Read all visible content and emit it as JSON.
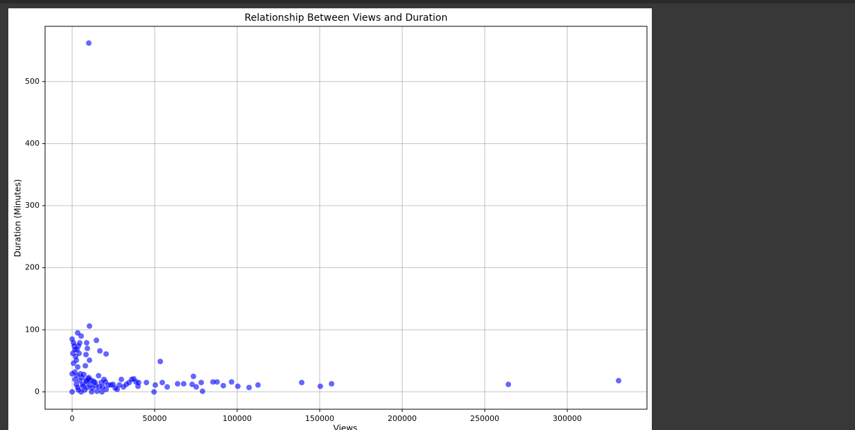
{
  "chart_data": {
    "type": "scatter",
    "title": "Relationship Between Views and Duration",
    "xlabel": "Views",
    "ylabel": "Duration (Minutes)",
    "x": [
      10085,
      10500,
      3360,
      5460,
      14700,
      8800,
      9200,
      16800,
      20600,
      8400,
      10500,
      8000,
      53400,
      0,
      840,
      1260,
      1680,
      420,
      2100,
      2520,
      840,
      3360,
      0,
      1680,
      3780,
      4200,
      2940,
      4620,
      0,
      29800,
      36100,
      38700,
      39900,
      45000,
      49600,
      50400,
      54600,
      57600,
      63900,
      67600,
      72700,
      73500,
      75200,
      78200,
      79000,
      85300,
      87800,
      91600,
      96600,
      100400,
      107200,
      112600,
      139100,
      150400,
      157200,
      264300,
      331100,
      2500,
      3400,
      4600,
      5900,
      6700,
      7600,
      8800,
      9700,
      10900,
      12200,
      13000,
      14300,
      16000,
      17600,
      18500,
      19300,
      20600,
      21900,
      23500,
      24800,
      26100,
      27300,
      28600,
      31100,
      32800,
      34500,
      37400,
      40300,
      3800,
      5500,
      7100,
      10100,
      11800,
      15100,
      18100,
      1700,
      2900,
      5000,
      6300,
      8400,
      9200,
      11300,
      13900,
      16400,
      20200
    ],
    "values": [
      562,
      106,
      95,
      90,
      83,
      79,
      70,
      66,
      61,
      60,
      51,
      42,
      49,
      85,
      79,
      74,
      68,
      62,
      57,
      51,
      46,
      40,
      29,
      32,
      74,
      62,
      68,
      79,
      0,
      20,
      20,
      16,
      9,
      15,
      0,
      11,
      15,
      8,
      13,
      13,
      12,
      25,
      8,
      15,
      1,
      16,
      16,
      10,
      16,
      9,
      7,
      11,
      15,
      9,
      13,
      12,
      18,
      12,
      7,
      18,
      23,
      9,
      3,
      16,
      21,
      11,
      6,
      17,
      10,
      26,
      15,
      8,
      20,
      4,
      11,
      11,
      12,
      6,
      4,
      11,
      8,
      12,
      15,
      21,
      15,
      3,
      0,
      28,
      23,
      0,
      1,
      0,
      20,
      26,
      29,
      12,
      18,
      7,
      19,
      15,
      8,
      16
    ],
    "color": "#0000ff",
    "alpha": 0.6,
    "xlim": [
      -16400,
      348300
    ],
    "ylim": [
      -28,
      589
    ],
    "xticks": [
      0,
      50000,
      100000,
      150000,
      200000,
      250000,
      300000
    ],
    "yticks": [
      0,
      100,
      200,
      300,
      400,
      500
    ],
    "grid": true
  }
}
